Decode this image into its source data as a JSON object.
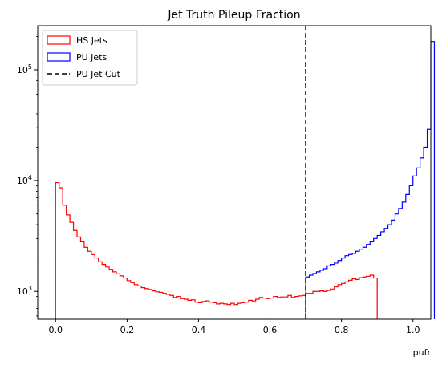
{
  "chart_data": {
    "type": "histogram",
    "title": "Jet Truth Pileup Fraction",
    "xlabel": "pufr",
    "ylabel": "",
    "xlim": [
      -0.05,
      1.05
    ],
    "ylim": [
      560,
      250000
    ],
    "yscale": "log",
    "grid": false,
    "legend_position": "top-left",
    "x_ticks": [
      {
        "value": 0.0,
        "label": "0.0"
      },
      {
        "value": 0.2,
        "label": "0.2"
      },
      {
        "value": 0.4,
        "label": "0.4"
      },
      {
        "value": 0.6,
        "label": "0.6"
      },
      {
        "value": 0.8,
        "label": "0.8"
      },
      {
        "value": 1.0,
        "label": "1.0"
      }
    ],
    "y_ticks": [
      {
        "value": 1000,
        "base": "10",
        "exp": "3"
      },
      {
        "value": 10000,
        "base": "10",
        "exp": "4"
      },
      {
        "value": 100000,
        "base": "10",
        "exp": "5"
      }
    ],
    "bin_width": 0.01,
    "series": [
      {
        "name": "HS Jets",
        "color": "#ff0000",
        "legend_style": "box",
        "start": 0.0,
        "values": [
          9600,
          8600,
          6000,
          4900,
          4200,
          3550,
          3100,
          2800,
          2500,
          2300,
          2150,
          2000,
          1850,
          1750,
          1660,
          1580,
          1500,
          1440,
          1380,
          1320,
          1250,
          1200,
          1150,
          1120,
          1080,
          1060,
          1040,
          1010,
          990,
          980,
          960,
          940,
          920,
          880,
          900,
          860,
          850,
          830,
          840,
          800,
          790,
          810,
          820,
          800,
          790,
          770,
          780,
          770,
          760,
          780,
          760,
          780,
          790,
          800,
          830,
          820,
          850,
          880,
          870,
          860,
          870,
          900,
          880,
          890,
          890,
          920,
          880,
          900,
          910,
          920,
          960,
          960,
          1000,
          1000,
          1010,
          1000,
          1020,
          1050,
          1100,
          1150,
          1180,
          1220,
          1260,
          1300,
          1280,
          1330,
          1350,
          1370,
          1400,
          1320
        ]
      },
      {
        "name": "PU Jets",
        "color": "#0000ff",
        "legend_style": "box",
        "start": 0.7,
        "values": [
          1350,
          1400,
          1450,
          1500,
          1550,
          1600,
          1700,
          1750,
          1800,
          1900,
          2000,
          2100,
          2150,
          2200,
          2300,
          2400,
          2500,
          2650,
          2800,
          3000,
          3200,
          3450,
          3700,
          4000,
          4400,
          5000,
          5600,
          6400,
          7500,
          9000,
          11000,
          13000,
          16000,
          20000,
          29000,
          180000
        ]
      }
    ],
    "vlines": [
      {
        "name": "PU Jet Cut",
        "x": 0.7,
        "color": "#000000",
        "style": "dashed"
      }
    ]
  }
}
